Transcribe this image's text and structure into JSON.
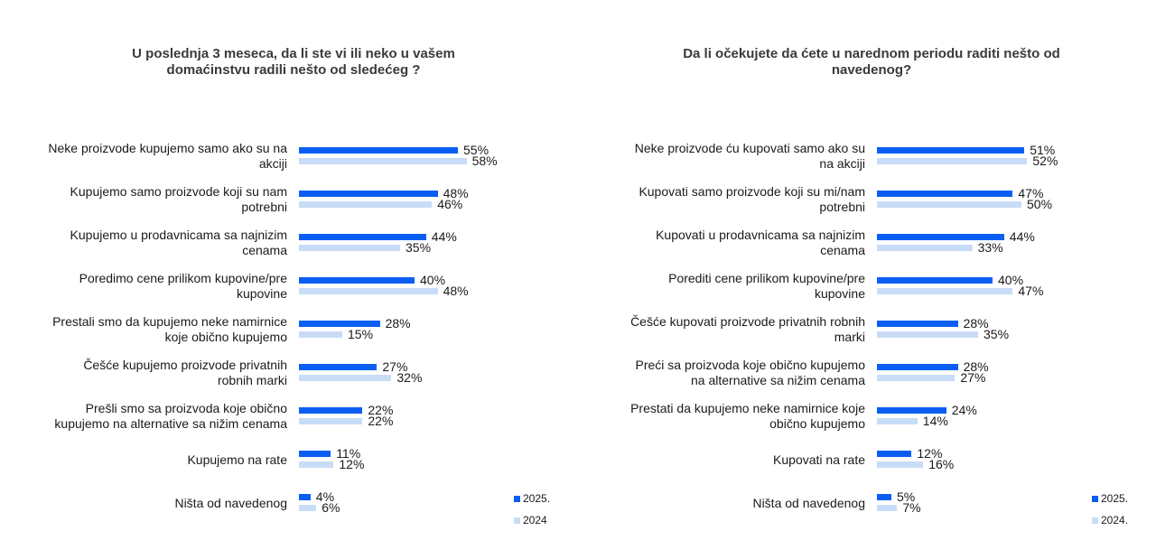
{
  "colors": {
    "series_2025": "#0a5ff2",
    "series_2024": "#c9dcf7"
  },
  "chart_data": [
    {
      "type": "bar",
      "orientation": "horizontal",
      "title_lines": [
        "U poslednja 3 meseca, da li ste vi ili neko u vašem",
        "domaćinstvu radili nešto od sledećeg ?"
      ],
      "categories": [
        [
          "Neke proizvode kupujemo samo ako su na",
          "akciji"
        ],
        [
          "Kupujemo samo proizvode koji su nam",
          "potrebni"
        ],
        [
          "Kupujemo u prodavnicama sa najnizim",
          "cenama"
        ],
        [
          "Poredimo cene prilikom kupovine/pre",
          "kupovine"
        ],
        [
          "Prestali smo da kupujemo neke namirnice",
          "koje obično kupujemo"
        ],
        [
          "Češće kupujemo proizvode privatnih",
          "robnih marki"
        ],
        [
          "Prešli smo sa proizvoda koje obično",
          "kupujemo na alternative sa nižim cenama"
        ],
        [
          "Kupujemo na rate"
        ],
        [
          "Ništa od navedenog"
        ]
      ],
      "series": [
        {
          "name": "2025.",
          "values": [
            55,
            48,
            44,
            40,
            28,
            27,
            22,
            11,
            4
          ],
          "labels": [
            "55%",
            "48%",
            "44%",
            "40%",
            "28%",
            "27%",
            "22%",
            "11%",
            "4%"
          ]
        },
        {
          "name": "2024",
          "values": [
            58,
            46,
            35,
            48,
            15,
            32,
            22,
            12,
            6
          ],
          "labels": [
            "58%",
            "46%",
            "35%",
            "48%",
            "15%",
            "32%",
            "22%",
            "12%",
            "6%"
          ]
        }
      ],
      "xlim": [
        0,
        100
      ],
      "grid": false,
      "legend": "bottom-right"
    },
    {
      "type": "bar",
      "orientation": "horizontal",
      "title_lines": [
        "Da li očekujete da ćete u narednom periodu raditi nešto od",
        "navedenog?"
      ],
      "categories": [
        [
          "Neke proizvode ću kupovati samo ako su",
          "na akciji"
        ],
        [
          "Kupovati samo proizvode koji su mi/nam",
          "potrebni"
        ],
        [
          "Kupovati u prodavnicama sa najnizim",
          "cenama"
        ],
        [
          "Porediti cene prilikom kupovine/pre",
          "kupovine"
        ],
        [
          "Češće kupovati proizvode privatnih robnih",
          "marki"
        ],
        [
          "Preći sa proizvoda koje obično kupujemo",
          "na alternative sa nižim cenama"
        ],
        [
          "Prestati da kupujemo neke namirnice koje",
          "obično kupujemo"
        ],
        [
          "Kupovati na rate"
        ],
        [
          "Ništa od navedenog"
        ]
      ],
      "series": [
        {
          "name": "2025.",
          "values": [
            51,
            47,
            44,
            40,
            28,
            28,
            24,
            12,
            5
          ],
          "labels": [
            "51%",
            "47%",
            "44%",
            "40%",
            "28%",
            "28%",
            "24%",
            "12%",
            "5%"
          ]
        },
        {
          "name": "2024.",
          "values": [
            52,
            50,
            33,
            47,
            35,
            27,
            14,
            16,
            7
          ],
          "labels": [
            "52%",
            "50%",
            "33%",
            "47%",
            "35%",
            "27%",
            "14%",
            "16%",
            "7%"
          ]
        }
      ],
      "xlim": [
        0,
        100
      ],
      "grid": false,
      "legend": "bottom-right"
    }
  ]
}
